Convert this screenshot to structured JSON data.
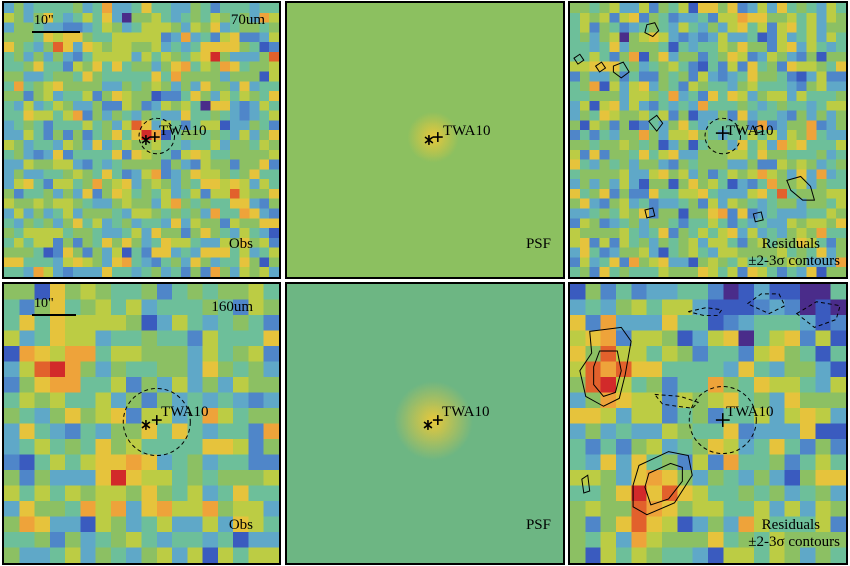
{
  "scale_label": "10\"",
  "target_name": "TWA10",
  "rows": [
    {
      "band": "70um",
      "labels": {
        "obs": "Obs",
        "psf": "PSF",
        "res_line1": "Residuals",
        "res_line2": "±2-3σ contours"
      }
    },
    {
      "band": "160um",
      "labels": {
        "obs": "Obs",
        "psf": "PSF",
        "res_line1": "Residuals",
        "res_line2": "±2-3σ contours"
      }
    }
  ],
  "colors": {
    "psf_bg_70": "#8cc060",
    "psf_bg_160": "#6db683",
    "psf_core": "#e8c83a",
    "hot": "#e03a2a",
    "cold": "#5a2a8a"
  }
}
